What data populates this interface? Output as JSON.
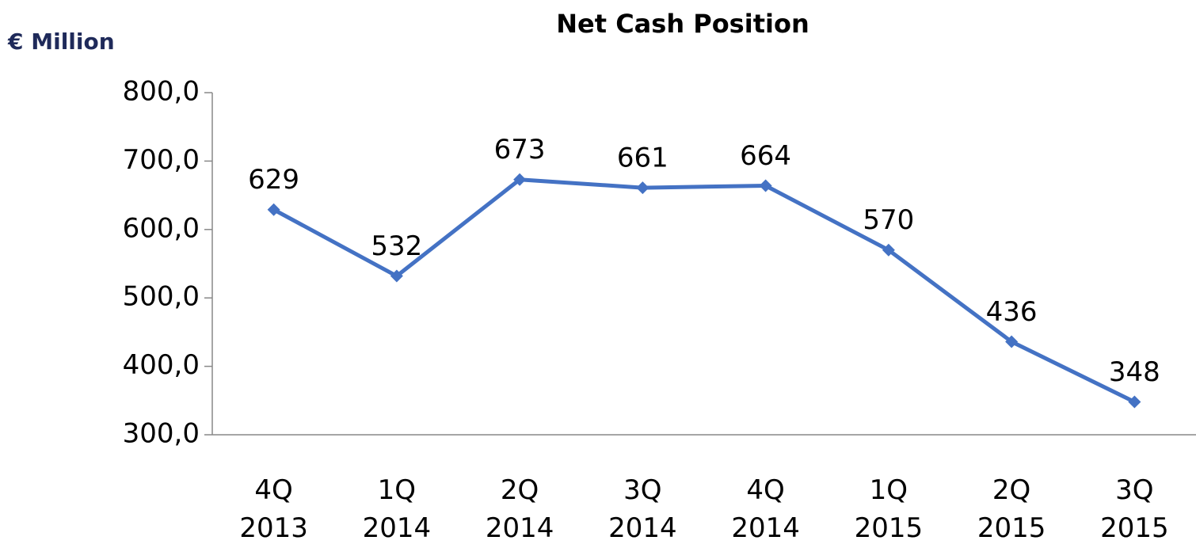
{
  "chart_data": {
    "type": "line",
    "title": "Net Cash Position",
    "y_axis_label": "€ Million",
    "categories": [
      "4Q 2013",
      "1Q 2014",
      "2Q 2014",
      "3Q 2014",
      "4Q 2014",
      "1Q 2015",
      "2Q 2015",
      "3Q 2015"
    ],
    "values": [
      629,
      532,
      673,
      661,
      664,
      570,
      436,
      348
    ],
    "color": "#4472c4",
    "ylim": [
      300,
      800
    ],
    "yticks": [
      {
        "value": 300,
        "label": "300,0"
      },
      {
        "value": 400,
        "label": "400,0"
      },
      {
        "value": 500,
        "label": "500,0"
      },
      {
        "value": 600,
        "label": "600,0"
      },
      {
        "value": 700,
        "label": "700,0"
      },
      {
        "value": 800,
        "label": "800,0"
      }
    ],
    "grid": false
  }
}
